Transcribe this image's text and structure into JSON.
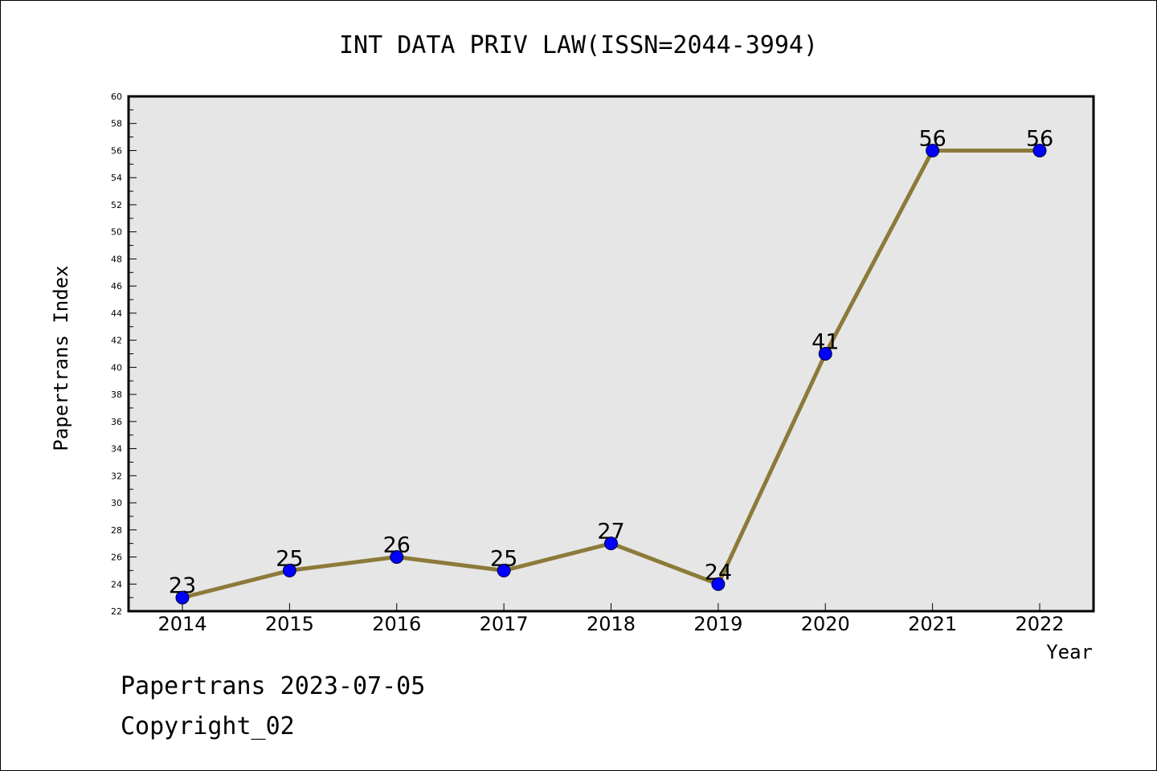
{
  "chart_data": {
    "type": "line",
    "title": "INT DATA PRIV LAW(ISSN=2044-3994)",
    "xlabel": "Year",
    "ylabel": "Papertrans Index",
    "categories": [
      "2014",
      "2015",
      "2016",
      "2017",
      "2018",
      "2019",
      "2020",
      "2021",
      "2022"
    ],
    "series": [
      {
        "values": [
          23,
          25,
          26,
          25,
          27,
          24,
          41,
          56,
          56
        ]
      }
    ],
    "ylim": [
      22,
      60
    ],
    "ytick_step": 2,
    "grid": false,
    "legend": "none",
    "colors": {
      "plot_background": "#e6e6e6",
      "line": "#8c7a3a",
      "marker": "#0000ff"
    }
  },
  "footer": {
    "line1": "Papertrans 2023-07-05",
    "line2": "Copyright_02"
  }
}
